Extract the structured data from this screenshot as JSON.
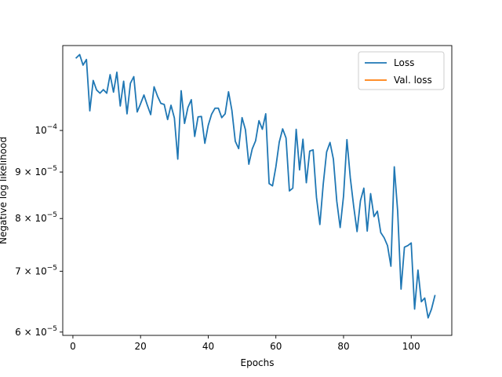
{
  "chart_data": {
    "type": "line",
    "xlabel": "Epochs",
    "ylabel": "Negative log likelihood",
    "yscale": "log",
    "xlim": [
      -3,
      112
    ],
    "ylim": [
      5.95e-05,
      0.000124
    ],
    "grid": false,
    "legend_position": "top-right",
    "x_ticks": [
      0,
      20,
      40,
      60,
      80,
      100
    ],
    "x_tick_labels": [
      "0",
      "20",
      "40",
      "60",
      "80",
      "100"
    ],
    "y_ticks": [
      6e-05,
      7e-05,
      8e-05,
      9e-05,
      0.0001
    ],
    "y_tick_labels": [
      {
        "mantissa": "6",
        "times": "×",
        "base": "10",
        "exponent": "−5"
      },
      {
        "mantissa": "7",
        "times": "×",
        "base": "10",
        "exponent": "−5"
      },
      {
        "mantissa": "8",
        "times": "×",
        "base": "10",
        "exponent": "−5"
      },
      {
        "mantissa": "9",
        "times": "×",
        "base": "10",
        "exponent": "−5"
      },
      {
        "mantissa": "",
        "times": "",
        "base": "10",
        "exponent": "−4"
      }
    ],
    "series": [
      {
        "name": "Loss",
        "color": "#1f77b4",
        "x": [
          1,
          2,
          3,
          4,
          5,
          6,
          7,
          8,
          9,
          10,
          11,
          12,
          13,
          14,
          15,
          16,
          17,
          18,
          19,
          20,
          21,
          22,
          23,
          24,
          25,
          26,
          27,
          28,
          29,
          30,
          31,
          32,
          33,
          34,
          35,
          36,
          37,
          38,
          39,
          40,
          41,
          42,
          43,
          44,
          45,
          46,
          47,
          48,
          49,
          50,
          51,
          52,
          53,
          54,
          55,
          56,
          57,
          58,
          59,
          60,
          61,
          62,
          63,
          64,
          65,
          66,
          67,
          68,
          69,
          70,
          71,
          72,
          73,
          74,
          75,
          76,
          77,
          78,
          79,
          80,
          81,
          82,
          83,
          84,
          85,
          86,
          87,
          88,
          89,
          90,
          91,
          92,
          93,
          94,
          95,
          96,
          97,
          98,
          99,
          100,
          101,
          102,
          103,
          104,
          105,
          106,
          107
        ],
        "values": [
          0.0001202,
          0.0001212,
          0.000118,
          0.0001197,
          0.0001051,
          0.0001135,
          0.0001108,
          0.0001099,
          0.0001109,
          0.0001099,
          0.0001152,
          0.0001102,
          0.0001159,
          0.0001064,
          0.0001133,
          0.0001043,
          0.0001127,
          0.0001146,
          0.0001048,
          0.000107,
          0.0001094,
          0.0001066,
          0.0001041,
          0.0001117,
          0.0001091,
          0.0001071,
          0.0001068,
          0.0001028,
          0.0001066,
          0.0001032,
          9.3e-05,
          0.0001106,
          0.0001018,
          0.000106,
          0.0001081,
          9.85e-05,
          0.0001035,
          0.0001036,
          9.68e-05,
          0.0001013,
          0.0001042,
          0.0001058,
          0.0001058,
          0.0001033,
          0.0001043,
          0.0001103,
          0.0001052,
          9.73e-05,
          9.55e-05,
          0.0001033,
          0.0001002,
          9.18e-05,
          9.54e-05,
          9.74e-05,
          0.0001025,
          0.0001003,
          0.0001043,
          8.74e-05,
          8.69e-05,
          9.12e-05,
          9.71e-05,
          0.0001004,
          9.81e-05,
          8.58e-05,
          8.64e-05,
          0.0001003,
          9.05e-05,
          9.78e-05,
          8.76e-05,
          9.49e-05,
          9.52e-05,
          8.44e-05,
          7.88e-05,
          8.73e-05,
          9.47e-05,
          9.7e-05,
          9.3e-05,
          8.36e-05,
          7.82e-05,
          8.47e-05,
          9.77e-05,
          8.87e-05,
          8.25e-05,
          7.74e-05,
          8.37e-05,
          8.64e-05,
          7.75e-05,
          8.52e-05,
          8.04e-05,
          8.15e-05,
          7.72e-05,
          7.62e-05,
          7.47e-05,
          7.09e-05,
          9.12e-05,
          8.15e-05,
          6.69e-05,
          7.44e-05,
          7.47e-05,
          7.52e-05,
          6.36e-05,
          7.02e-05,
          6.48e-05,
          6.54e-05,
          6.22e-05,
          6.36e-05,
          6.58e-05
        ]
      },
      {
        "name": "Val. loss",
        "color": "#ff7f0e",
        "x": [],
        "values": []
      }
    ]
  }
}
